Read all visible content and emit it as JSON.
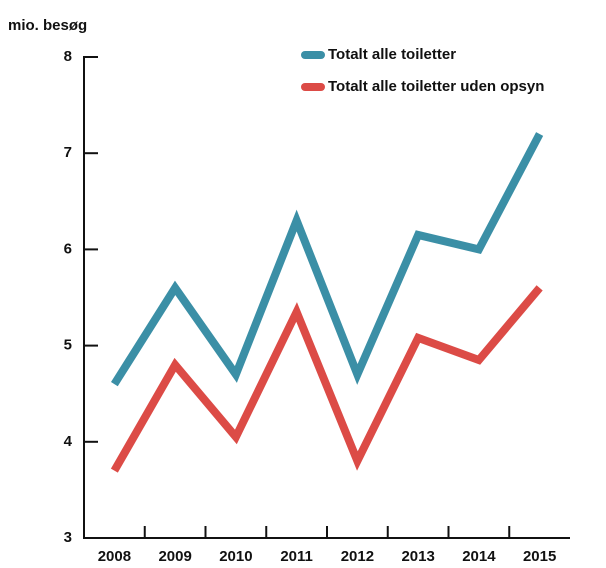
{
  "chart_data": {
    "type": "line",
    "y_label": "mio. besøg",
    "categories": [
      "2008",
      "2009",
      "2010",
      "2011",
      "2012",
      "2013",
      "2014",
      "2015"
    ],
    "series": [
      {
        "name": "Totalt alle toiletter",
        "color": "#3b8fa6",
        "values": [
          4.6,
          5.6,
          4.7,
          6.3,
          4.7,
          6.15,
          6.0,
          7.2
        ]
      },
      {
        "name": "Totalt alle toiletter uden opsyn",
        "color": "#dc4b46",
        "values": [
          3.7,
          4.8,
          4.05,
          5.35,
          3.8,
          5.08,
          4.85,
          5.6
        ]
      }
    ],
    "ylim": [
      3,
      8
    ],
    "yticks": [
      3,
      4,
      5,
      6,
      7,
      8
    ],
    "legend": "top-right"
  }
}
